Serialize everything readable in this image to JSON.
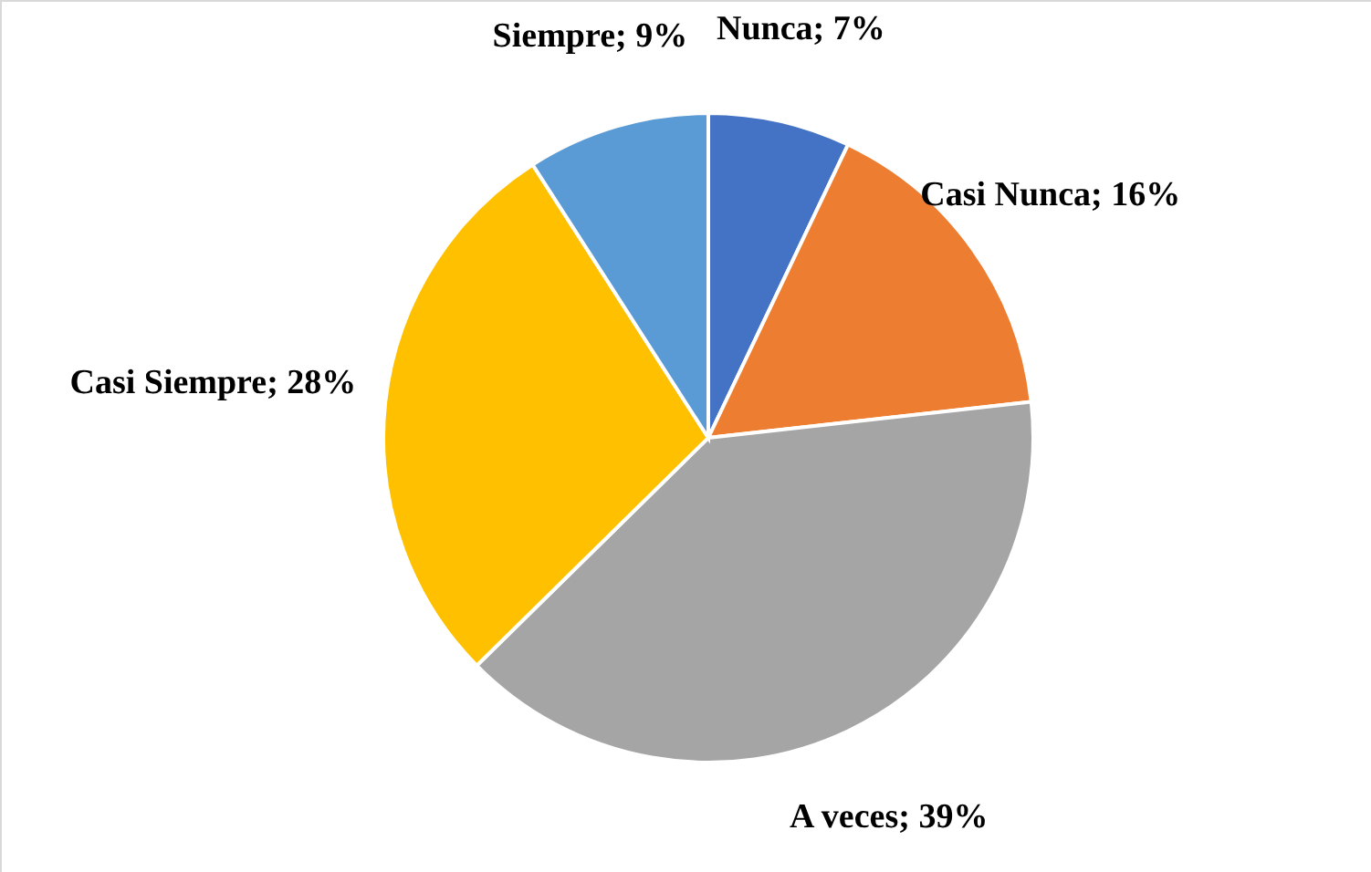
{
  "chart_data": {
    "type": "pie",
    "categories": [
      "Nunca",
      "Casi Nunca",
      "A veces",
      "Casi Siempre",
      "Siempre"
    ],
    "values": [
      7,
      16,
      39,
      28,
      9
    ],
    "value_labels": [
      "7%",
      "16%",
      "39%",
      "28%",
      "9%"
    ],
    "colors": [
      "#4472c4",
      "#ed7d31",
      "#a5a5a5",
      "#ffc000",
      "#5b9bd5"
    ]
  }
}
